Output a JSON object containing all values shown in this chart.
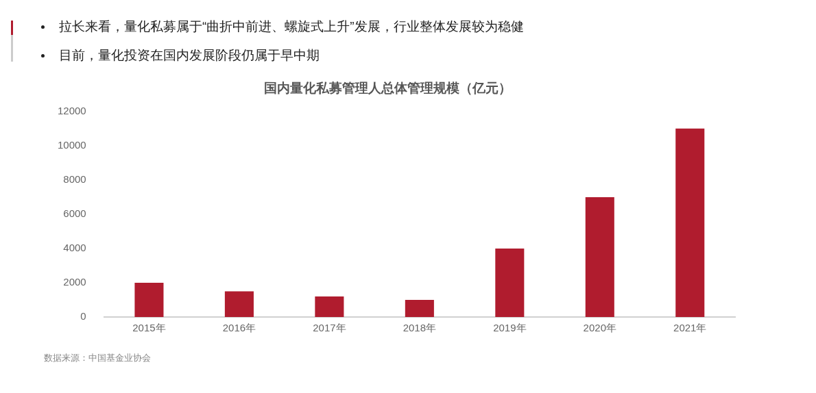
{
  "chart_data": {
    "type": "bar",
    "title": "国内量化私募管理人总体管理规模（亿元）",
    "categories": [
      "2015年",
      "2016年",
      "2017年",
      "2018年",
      "2019年",
      "2020年",
      "2021年"
    ],
    "values": [
      2000,
      1500,
      1200,
      1000,
      4000,
      7000,
      11000
    ],
    "color": "#b01c2e",
    "ylim": [
      0,
      12000
    ],
    "yticks": [
      0,
      2000,
      4000,
      6000,
      8000,
      10000,
      12000
    ],
    "grid": false,
    "legend": false,
    "annotations": [
      "拉长来看，量化私募属于“曲折中前进、螺旋式上升”发展，行业整体发展较为稳健",
      "目前，量化投资在国内发展阶段仍属于早中期",
      "数据来源：中国基金业协会"
    ]
  }
}
